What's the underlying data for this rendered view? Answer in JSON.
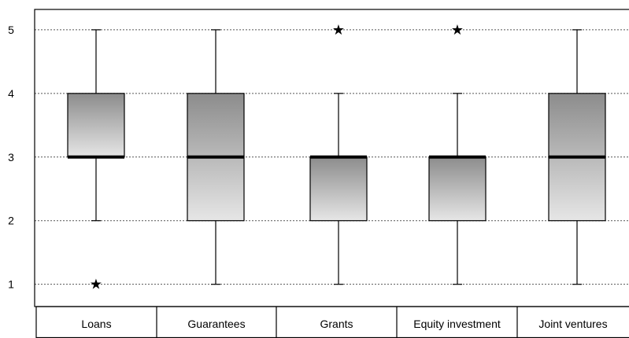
{
  "chart_data": {
    "type": "box",
    "categories": [
      "Loans",
      "Guarantees",
      "Grants",
      "Equity investment",
      "Joint ventures"
    ],
    "yticks": [
      1,
      2,
      3,
      4,
      5
    ],
    "ylim": [
      0.65,
      5.32
    ],
    "grid": true,
    "series": [
      {
        "min": 2,
        "q1": 3,
        "median": 3,
        "q3": 4,
        "max": 5,
        "outliers": [
          1
        ]
      },
      {
        "min": 1,
        "q1": 2,
        "median": 3,
        "q3": 4,
        "max": 5,
        "outliers": []
      },
      {
        "min": 1,
        "q1": 2,
        "median": 3,
        "q3": 3,
        "max": 4,
        "outliers": [
          5
        ]
      },
      {
        "min": 1,
        "q1": 2,
        "median": 3,
        "q3": 3,
        "max": 4,
        "outliers": [
          5
        ]
      },
      {
        "min": 1,
        "q1": 2,
        "median": 3,
        "q3": 4,
        "max": 5,
        "outliers": []
      }
    ],
    "outlier_marker": "★",
    "box_fill_top": "#8c8c8c",
    "box_fill_bottom": "#e6e6e6"
  }
}
